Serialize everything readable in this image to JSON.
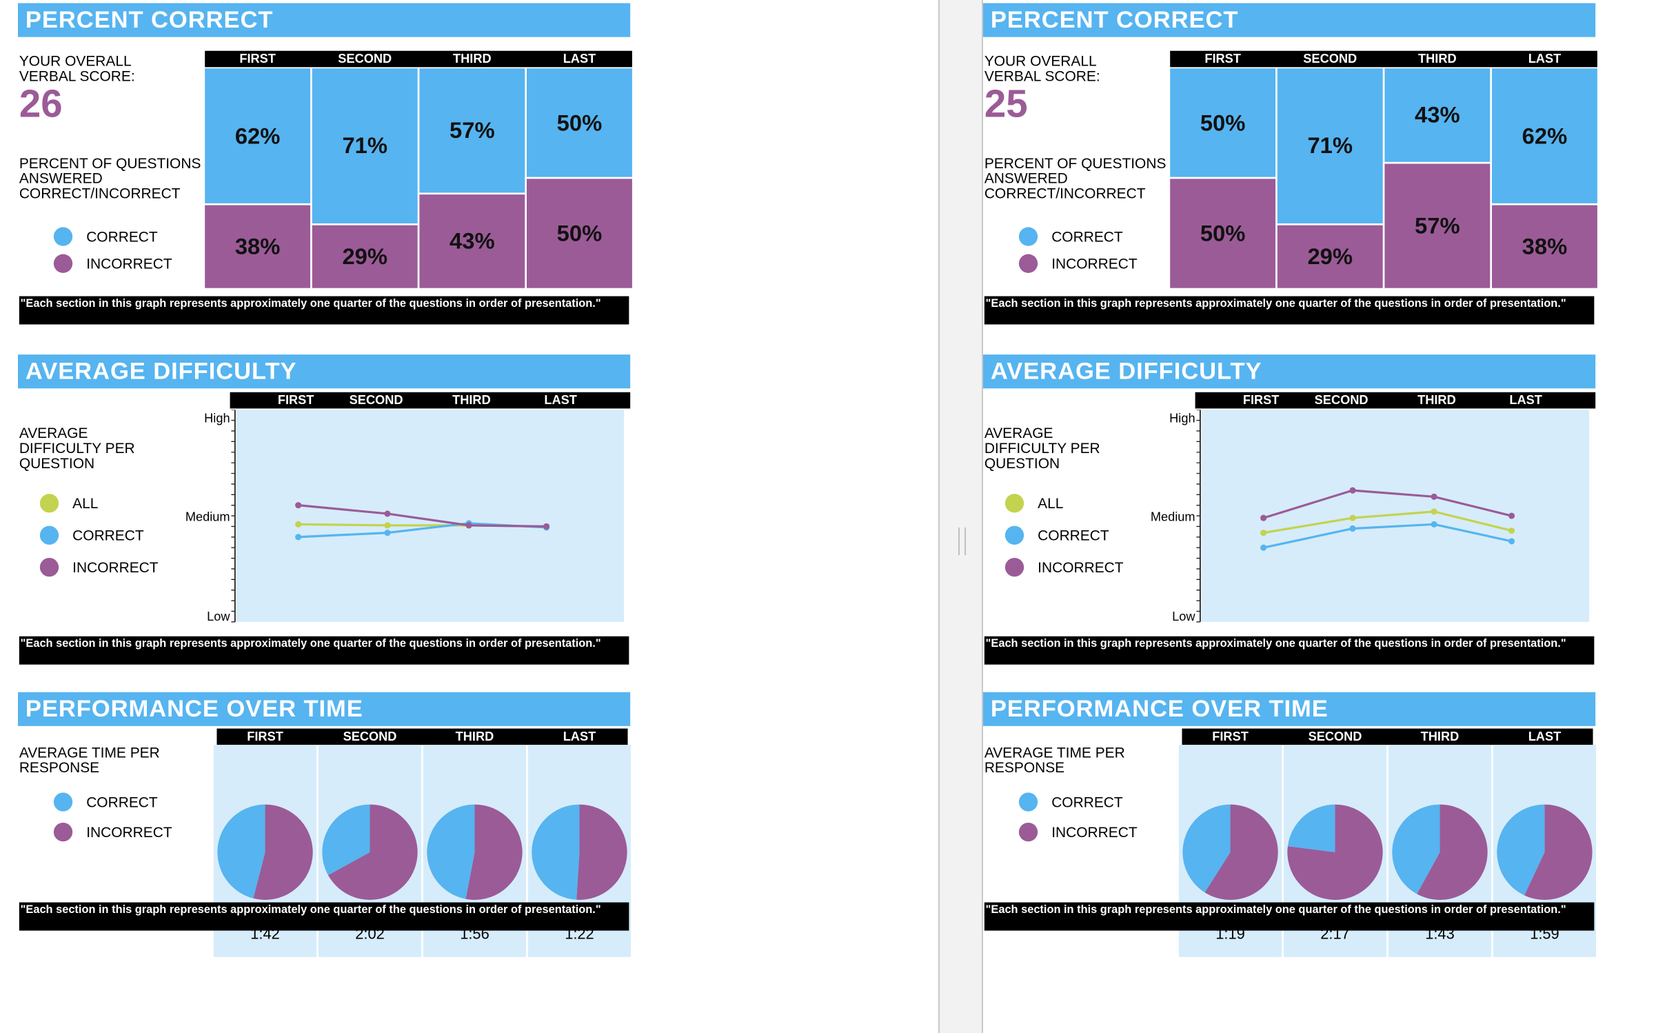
{
  "colors": {
    "header": "#56b4f0",
    "correct": "#56b4f0",
    "incorrect": "#9b5b97",
    "all": "#c3d34f",
    "plot_bg": "#d6ecfa"
  },
  "categories": [
    "FIRST",
    "SECOND",
    "THIRD",
    "LAST"
  ],
  "labels": {
    "percent_title": "PERCENT CORRECT",
    "score_label": "YOUR OVERALL VERBAL SCORE:",
    "questions_label": "PERCENT OF QUESTIONS ANSWERED CORRECT/INCORRECT",
    "correct": "CORRECT",
    "incorrect": "INCORRECT",
    "all": "ALL",
    "difficulty_title": "AVERAGE DIFFICULTY",
    "difficulty_label": "AVERAGE DIFFICULTY PER QUESTION",
    "time_title": "PERFORMANCE OVER TIME",
    "time_label": "AVERAGE TIME PER RESPONSE",
    "high": "High",
    "medium": "Medium",
    "low": "Low",
    "footnote": "\"Each section in this graph represents approximately one quarter of the questions in order of presentation.\""
  },
  "reports": [
    {
      "score": "26",
      "chart_data": [
        {
          "type": "bar",
          "title": "PERCENT CORRECT",
          "categories": [
            "FIRST",
            "SECOND",
            "THIRD",
            "LAST"
          ],
          "series": [
            {
              "name": "CORRECT",
              "values": [
                62,
                71,
                57,
                50
              ],
              "labels": [
                "62%",
                "71%",
                "57%",
                "50%"
              ]
            },
            {
              "name": "INCORRECT",
              "values": [
                38,
                29,
                43,
                50
              ],
              "labels": [
                "38%",
                "29%",
                "43%",
                "50%"
              ]
            }
          ],
          "stacked": true,
          "ylim": [
            0,
            100
          ]
        },
        {
          "type": "line",
          "title": "AVERAGE DIFFICULTY",
          "categories": [
            "FIRST",
            "SECOND",
            "THIRD",
            "LAST"
          ],
          "ylabel": "AVERAGE DIFFICULTY PER QUESTION",
          "yticks": [
            "Low",
            "Medium",
            "High"
          ],
          "ylim": [
            0,
            1
          ],
          "series": [
            {
              "name": "ALL",
              "values": [
                0.46,
                0.455,
                0.455,
                0.45
              ]
            },
            {
              "name": "CORRECT",
              "values": [
                0.4,
                0.42,
                0.465,
                0.445
              ]
            },
            {
              "name": "INCORRECT",
              "values": [
                0.55,
                0.51,
                0.455,
                0.45
              ]
            }
          ]
        },
        {
          "type": "pie",
          "title": "PERFORMANCE OVER TIME",
          "categories": [
            "FIRST",
            "SECOND",
            "THIRD",
            "LAST"
          ],
          "series": [
            {
              "name": "CORRECT",
              "values": [
                0.46,
                0.33,
                0.47,
                0.49
              ]
            },
            {
              "name": "INCORRECT",
              "values": [
                0.54,
                0.67,
                0.53,
                0.51
              ]
            }
          ],
          "times": [
            "1:42",
            "2:02",
            "1:56",
            "1:22"
          ]
        }
      ]
    },
    {
      "score": "25",
      "chart_data": [
        {
          "type": "bar",
          "title": "PERCENT CORRECT",
          "categories": [
            "FIRST",
            "SECOND",
            "THIRD",
            "LAST"
          ],
          "series": [
            {
              "name": "CORRECT",
              "values": [
                50,
                71,
                43,
                62
              ],
              "labels": [
                "50%",
                "71%",
                "43%",
                "62%"
              ]
            },
            {
              "name": "INCORRECT",
              "values": [
                50,
                29,
                57,
                38
              ],
              "labels": [
                "50%",
                "29%",
                "57%",
                "38%"
              ]
            }
          ],
          "stacked": true,
          "ylim": [
            0,
            100
          ]
        },
        {
          "type": "line",
          "title": "AVERAGE DIFFICULTY",
          "categories": [
            "FIRST",
            "SECOND",
            "THIRD",
            "LAST"
          ],
          "ylabel": "AVERAGE DIFFICULTY PER QUESTION",
          "yticks": [
            "Low",
            "Medium",
            "High"
          ],
          "ylim": [
            0,
            1
          ],
          "series": [
            {
              "name": "ALL",
              "values": [
                0.42,
                0.49,
                0.52,
                0.43
              ]
            },
            {
              "name": "CORRECT",
              "values": [
                0.35,
                0.44,
                0.46,
                0.38
              ]
            },
            {
              "name": "INCORRECT",
              "values": [
                0.49,
                0.62,
                0.59,
                0.5
              ]
            }
          ]
        },
        {
          "type": "pie",
          "title": "PERFORMANCE OVER TIME",
          "categories": [
            "FIRST",
            "SECOND",
            "THIRD",
            "LAST"
          ],
          "series": [
            {
              "name": "CORRECT",
              "values": [
                0.41,
                0.23,
                0.42,
                0.43
              ]
            },
            {
              "name": "INCORRECT",
              "values": [
                0.59,
                0.77,
                0.58,
                0.57
              ]
            }
          ],
          "times": [
            "1:19",
            "2:17",
            "1:43",
            "1:59"
          ]
        }
      ]
    }
  ]
}
